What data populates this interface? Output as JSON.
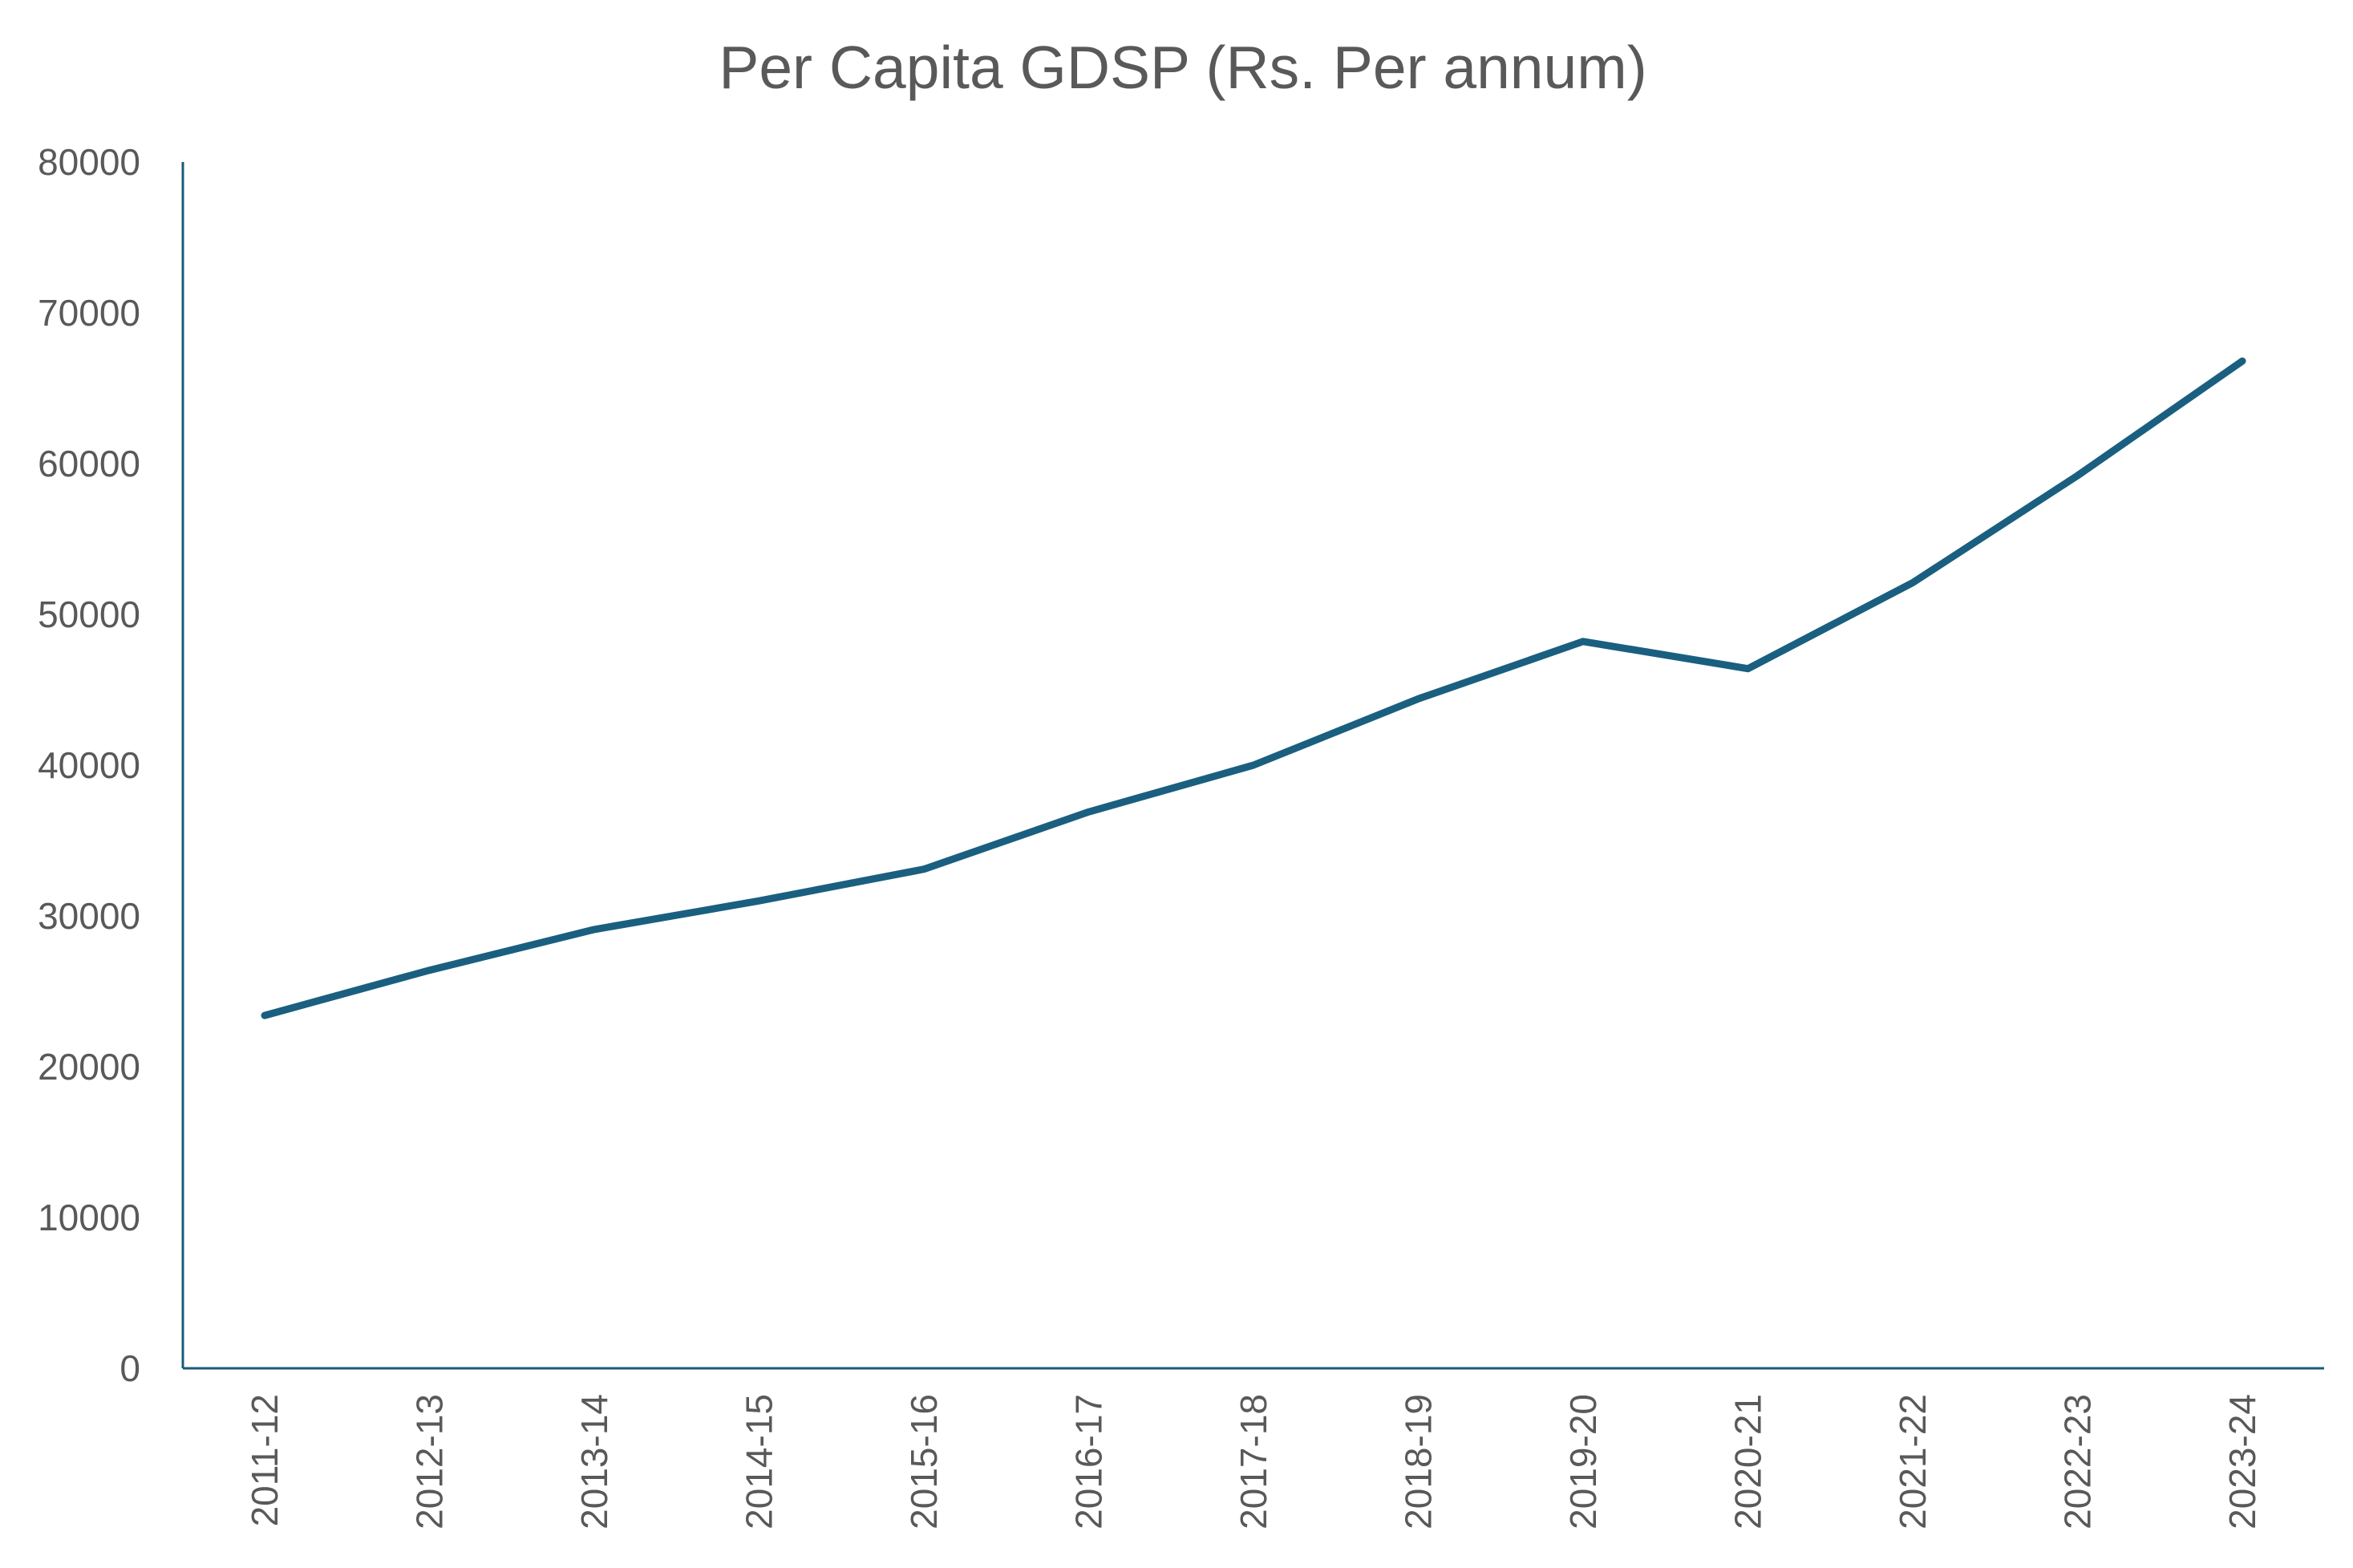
{
  "chart_data": {
    "type": "line",
    "title": "Per Capita GDSP (Rs. Per annum)",
    "xlabel": "",
    "ylabel": "",
    "categories": [
      "2011-12",
      "2012-13",
      "2013-14",
      "2014-15",
      "2015-16",
      "2016-17",
      "2017-18",
      "2018-19",
      "2019-20",
      "2020-21",
      "2021-22",
      "2022-23",
      "2023-24"
    ],
    "series": [
      {
        "values": [
          23400,
          26400,
          29100,
          31000,
          33100,
          36900,
          40000,
          44400,
          48200,
          46400,
          52100,
          59200,
          66800
        ],
        "color": "#1a5f80"
      }
    ],
    "ylim": [
      0,
      80000
    ],
    "yticks": [
      "0",
      "10000",
      "20000",
      "30000",
      "40000",
      "50000",
      "60000",
      "70000",
      "80000"
    ],
    "grid": false,
    "legend": "none"
  }
}
